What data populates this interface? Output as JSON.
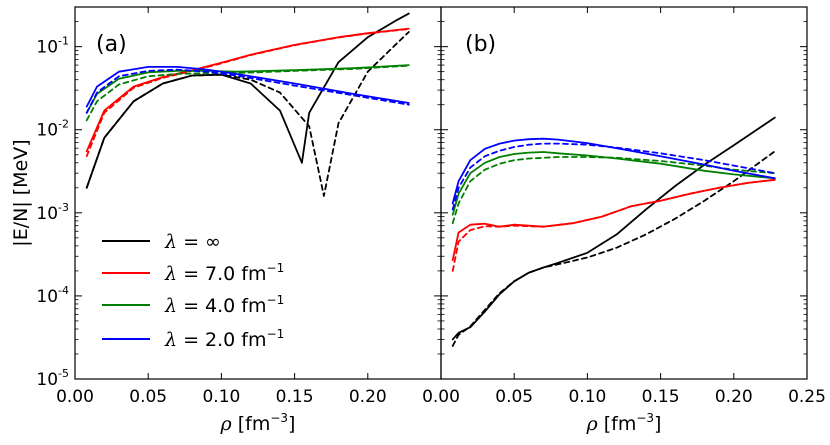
{
  "colors": {
    "inf": "#000000",
    "l7": "#ff0000",
    "l4": "#008000",
    "l2": "#0000ff"
  },
  "chart_data": {
    "type": "line",
    "shared_ylabel": "|E/N| [MeV]",
    "legend": {
      "location": "lower-left of panel (a)",
      "entries": [
        {
          "key": "inf",
          "text": "λ = ∞",
          "symbol": "λ",
          "eq": " = ",
          "value": "∞",
          "unit": "",
          "exp": ""
        },
        {
          "key": "l7",
          "text": "λ = 7.0 fm⁻¹",
          "symbol": "λ",
          "eq": " = ",
          "value": "7.0",
          "unit": " fm",
          "exp": "−1"
        },
        {
          "key": "l4",
          "text": "λ = 4.0 fm⁻¹",
          "symbol": "λ",
          "eq": " = ",
          "value": "4.0",
          "unit": " fm",
          "exp": "−1"
        },
        {
          "key": "l2",
          "text": "λ = 2.0 fm⁻¹",
          "symbol": "λ",
          "eq": " = ",
          "value": "2.0",
          "unit": " fm",
          "exp": "−1"
        }
      ]
    },
    "yaxis": {
      "scale": "log",
      "ylim": [
        1e-05,
        0.3
      ],
      "ticks": [
        {
          "value": 0.1,
          "base": "10",
          "exp": "-1"
        },
        {
          "value": 0.01,
          "base": "10",
          "exp": "-2"
        },
        {
          "value": 0.001,
          "base": "10",
          "exp": "-3"
        },
        {
          "value": 0.0001,
          "base": "10",
          "exp": "-4"
        },
        {
          "value": 1e-05,
          "base": "10",
          "exp": "-5"
        }
      ]
    },
    "panels": [
      {
        "label": "(a)",
        "xlabel_symbol": "ρ",
        "xlabel_unit": " [fm",
        "xlabel_exp": "−3",
        "xlabel_close": "]",
        "xlim": [
          0.0,
          0.25
        ],
        "xticks": [
          {
            "value": 0.0,
            "label": "0.00"
          },
          {
            "value": 0.05,
            "label": "0.05"
          },
          {
            "value": 0.1,
            "label": "0.10"
          },
          {
            "value": 0.15,
            "label": "0.15"
          },
          {
            "value": 0.2,
            "label": "0.20"
          }
        ],
        "series": [
          {
            "key": "inf",
            "style": "solid",
            "x": [
              0.008,
              0.02,
              0.04,
              0.06,
              0.08,
              0.1,
              0.12,
              0.14,
              0.155,
              0.16,
              0.18,
              0.2,
              0.22,
              0.228
            ],
            "y": [
              0.002,
              0.008,
              0.022,
              0.036,
              0.045,
              0.046,
              0.036,
              0.017,
              0.004,
              0.016,
              0.065,
              0.13,
              0.21,
              0.25
            ]
          },
          {
            "key": "inf",
            "style": "dashed",
            "x": [
              0.008,
              0.02,
              0.04,
              0.06,
              0.08,
              0.1,
              0.12,
              0.14,
              0.16,
              0.17,
              0.18,
              0.2,
              0.22,
              0.228
            ],
            "y": [
              0.002,
              0.008,
              0.022,
              0.036,
              0.045,
              0.046,
              0.04,
              0.028,
              0.011,
              0.0016,
              0.012,
              0.05,
              0.11,
              0.15
            ]
          },
          {
            "key": "l7",
            "style": "solid",
            "x": [
              0.008,
              0.02,
              0.04,
              0.06,
              0.08,
              0.1,
              0.12,
              0.15,
              0.18,
              0.2,
              0.228
            ],
            "y": [
              0.0055,
              0.017,
              0.033,
              0.043,
              0.052,
              0.064,
              0.08,
              0.105,
              0.13,
              0.145,
              0.165
            ]
          },
          {
            "key": "l7",
            "style": "dashed",
            "x": [
              0.008,
              0.02,
              0.04,
              0.06,
              0.08,
              0.1,
              0.12,
              0.15,
              0.18,
              0.2,
              0.228
            ],
            "y": [
              0.0048,
              0.016,
              0.032,
              0.042,
              0.051,
              0.063,
              0.079,
              0.104,
              0.129,
              0.144,
              0.163
            ]
          },
          {
            "key": "l4",
            "style": "solid",
            "x": [
              0.008,
              0.015,
              0.03,
              0.05,
              0.07,
              0.09,
              0.11,
              0.15,
              0.19,
              0.228
            ],
            "y": [
              0.016,
              0.027,
              0.041,
              0.049,
              0.051,
              0.051,
              0.05,
              0.052,
              0.055,
              0.06
            ]
          },
          {
            "key": "l4",
            "style": "dashed",
            "x": [
              0.008,
              0.015,
              0.03,
              0.05,
              0.07,
              0.09,
              0.11,
              0.15,
              0.19,
              0.228
            ],
            "y": [
              0.013,
              0.022,
              0.035,
              0.044,
              0.047,
              0.048,
              0.048,
              0.051,
              0.054,
              0.059
            ]
          },
          {
            "key": "l2",
            "style": "solid",
            "x": [
              0.008,
              0.015,
              0.03,
              0.05,
              0.07,
              0.09,
              0.11,
              0.15,
              0.19,
              0.228
            ],
            "y": [
              0.019,
              0.033,
              0.05,
              0.057,
              0.057,
              0.053,
              0.047,
              0.036,
              0.027,
              0.021
            ]
          },
          {
            "key": "l2",
            "style": "dashed",
            "x": [
              0.008,
              0.015,
              0.03,
              0.05,
              0.07,
              0.09,
              0.11,
              0.15,
              0.19,
              0.228
            ],
            "y": [
              0.016,
              0.028,
              0.044,
              0.051,
              0.053,
              0.05,
              0.045,
              0.034,
              0.026,
              0.02
            ]
          }
        ]
      },
      {
        "label": "(b)",
        "xlabel_symbol": "ρ",
        "xlabel_unit": " [fm",
        "xlabel_exp": "−3",
        "xlabel_close": "]",
        "xlim": [
          0.0,
          0.25
        ],
        "xticks": [
          {
            "value": 0.0,
            "label": "0.00"
          },
          {
            "value": 0.05,
            "label": "0.05"
          },
          {
            "value": 0.1,
            "label": "0.10"
          },
          {
            "value": 0.15,
            "label": "0.15"
          },
          {
            "value": 0.2,
            "label": "0.20"
          },
          {
            "value": 0.25,
            "label": "0.25"
          }
        ],
        "series": [
          {
            "key": "inf",
            "style": "solid",
            "x": [
              0.008,
              0.012,
              0.02,
              0.03,
              0.04,
              0.05,
              0.06,
              0.07,
              0.08,
              0.1,
              0.12,
              0.14,
              0.16,
              0.18,
              0.2,
              0.228
            ],
            "y": [
              3e-05,
              3.6e-05,
              4.2e-05,
              6.5e-05,
              0.000105,
              0.00015,
              0.00019,
              0.00022,
              0.00025,
              0.00033,
              0.00055,
              0.0011,
              0.0021,
              0.0038,
              0.0065,
              0.014
            ]
          },
          {
            "key": "inf",
            "style": "dashed",
            "x": [
              0.008,
              0.012,
              0.02,
              0.03,
              0.04,
              0.05,
              0.06,
              0.07,
              0.08,
              0.1,
              0.12,
              0.14,
              0.16,
              0.18,
              0.2,
              0.228
            ],
            "y": [
              2.5e-05,
              3.4e-05,
              4.3e-05,
              6.8e-05,
              0.000108,
              0.00015,
              0.00019,
              0.00022,
              0.00024,
              0.00029,
              0.00038,
              0.00055,
              0.00085,
              0.0014,
              0.0024,
              0.0055
            ]
          },
          {
            "key": "l7",
            "style": "solid",
            "x": [
              0.008,
              0.012,
              0.02,
              0.03,
              0.04,
              0.05,
              0.07,
              0.09,
              0.11,
              0.13,
              0.15,
              0.17,
              0.19,
              0.21,
              0.228
            ],
            "y": [
              0.00027,
              0.00058,
              0.00072,
              0.00074,
              0.00068,
              0.00072,
              0.00068,
              0.00075,
              0.0009,
              0.0012,
              0.0014,
              0.0017,
              0.002,
              0.0023,
              0.0025
            ]
          },
          {
            "key": "l7",
            "style": "dashed",
            "x": [
              0.008,
              0.012,
              0.02,
              0.03,
              0.04,
              0.05,
              0.07,
              0.09,
              0.11,
              0.13,
              0.15,
              0.17,
              0.19,
              0.21,
              0.228
            ],
            "y": [
              0.0002,
              0.00045,
              0.00062,
              0.00069,
              0.00068,
              0.0007,
              0.00068,
              0.00075,
              0.0009,
              0.0012,
              0.0014,
              0.0017,
              0.002,
              0.0023,
              0.0025
            ]
          },
          {
            "key": "l4",
            "style": "solid",
            "x": [
              0.008,
              0.012,
              0.02,
              0.03,
              0.04,
              0.05,
              0.06,
              0.07,
              0.08,
              0.1,
              0.12,
              0.15,
              0.18,
              0.2,
              0.228
            ],
            "y": [
              0.00095,
              0.0017,
              0.003,
              0.004,
              0.0047,
              0.0051,
              0.0053,
              0.0054,
              0.0052,
              0.0049,
              0.0045,
              0.0039,
              0.0032,
              0.0029,
              0.0026
            ]
          },
          {
            "key": "l4",
            "style": "dashed",
            "x": [
              0.008,
              0.012,
              0.02,
              0.03,
              0.04,
              0.05,
              0.06,
              0.07,
              0.08,
              0.1,
              0.12,
              0.15,
              0.18,
              0.2,
              0.228
            ],
            "y": [
              0.00075,
              0.0013,
              0.0024,
              0.0033,
              0.0039,
              0.0043,
              0.0045,
              0.0046,
              0.0047,
              0.0047,
              0.0046,
              0.0042,
              0.0037,
              0.0033,
              0.003
            ]
          },
          {
            "key": "l2",
            "style": "solid",
            "x": [
              0.008,
              0.012,
              0.02,
              0.03,
              0.04,
              0.05,
              0.06,
              0.07,
              0.08,
              0.1,
              0.12,
              0.15,
              0.18,
              0.2,
              0.228
            ],
            "y": [
              0.0013,
              0.0024,
              0.0043,
              0.0059,
              0.0068,
              0.0074,
              0.0077,
              0.0078,
              0.0076,
              0.0069,
              0.006,
              0.0048,
              0.0038,
              0.0032,
              0.0026
            ]
          },
          {
            "key": "l2",
            "style": "dashed",
            "x": [
              0.008,
              0.012,
              0.02,
              0.03,
              0.04,
              0.05,
              0.06,
              0.07,
              0.08,
              0.1,
              0.12,
              0.15,
              0.18,
              0.2,
              0.228
            ],
            "y": [
              0.0011,
              0.002,
              0.0035,
              0.0048,
              0.0056,
              0.0062,
              0.0066,
              0.0068,
              0.0068,
              0.0066,
              0.0061,
              0.0052,
              0.0043,
              0.0037,
              0.003
            ]
          }
        ]
      }
    ]
  }
}
